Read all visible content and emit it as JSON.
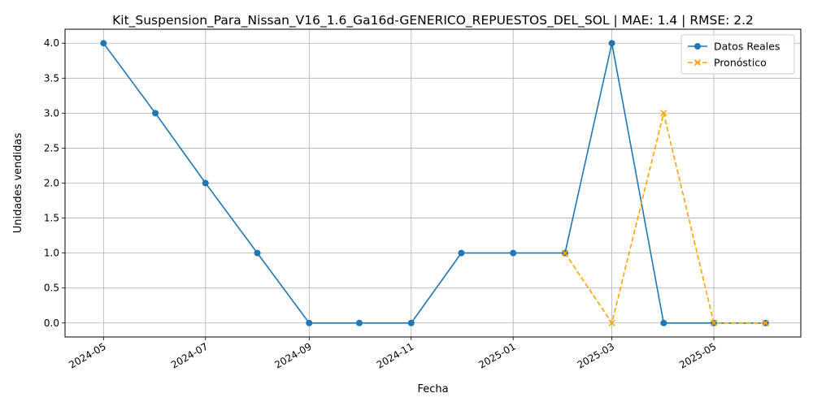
{
  "chart_data": {
    "type": "line",
    "title": "Kit_Suspension_Para_Nissan_V16_1.6_Ga16d-GENERICO_REPUESTOS_DEL_SOL | MAE: 1.4 | RMSE: 2.2",
    "xlabel": "Fecha",
    "ylabel": "Unidades vendidas",
    "ylim": [
      -0.2,
      4.2
    ],
    "xlim": [
      "2024-04-08",
      "2025-06-22"
    ],
    "grid": true,
    "legend_position": "top-right",
    "x_ticks": [
      "2024-05",
      "2024-07",
      "2024-09",
      "2024-11",
      "2025-01",
      "2025-03",
      "2025-05"
    ],
    "x_tick_dates": [
      "2024-05-01",
      "2024-07-01",
      "2024-09-01",
      "2024-11-01",
      "2025-01-01",
      "2025-03-01",
      "2025-05-01"
    ],
    "y_ticks": [
      "0.0",
      "0.5",
      "1.0",
      "1.5",
      "2.0",
      "2.5",
      "3.0",
      "3.5",
      "4.0"
    ],
    "y_tick_values": [
      0,
      0.5,
      1,
      1.5,
      2,
      2.5,
      3,
      3.5,
      4
    ],
    "series": [
      {
        "name": "Datos Reales",
        "color": "#1f77b4",
        "style": "solid",
        "marker": "circle",
        "x": [
          "2024-05-01",
          "2024-06-01",
          "2024-07-01",
          "2024-08-01",
          "2024-09-01",
          "2024-10-01",
          "2024-11-01",
          "2024-12-01",
          "2025-01-01",
          "2025-02-01",
          "2025-03-01",
          "2025-04-01",
          "2025-05-01",
          "2025-06-01"
        ],
        "values": [
          4,
          3,
          2,
          1,
          0,
          0,
          0,
          1,
          1,
          1,
          4,
          0,
          0,
          0
        ]
      },
      {
        "name": "Pronóstico",
        "color": "#ffa500",
        "style": "dashed",
        "marker": "x",
        "x": [
          "2025-02-01",
          "2025-03-01",
          "2025-04-01",
          "2025-05-01",
          "2025-06-01"
        ],
        "values": [
          1,
          0,
          3,
          0,
          0
        ]
      }
    ]
  }
}
